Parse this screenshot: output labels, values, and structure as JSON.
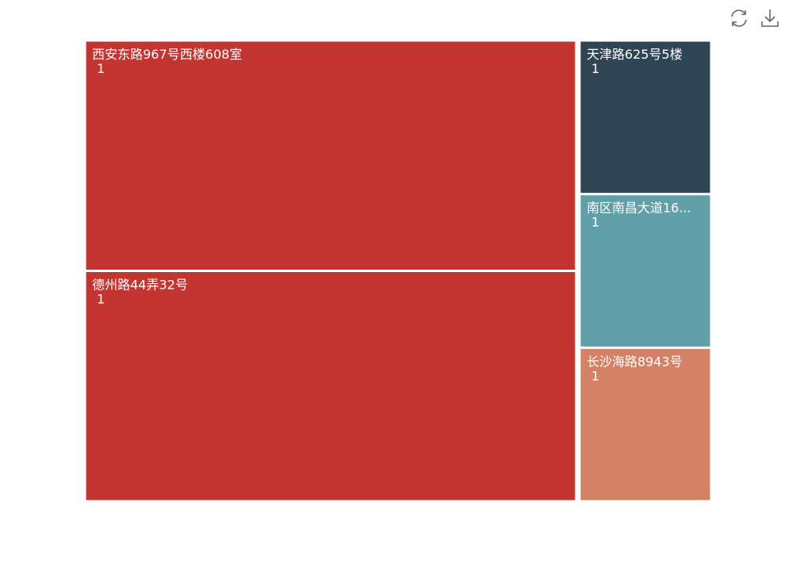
{
  "toolbox": {
    "restore_icon": "refresh-icon",
    "save_icon": "download-icon"
  },
  "chart_data": {
    "type": "treemap",
    "items": [
      {
        "name": "西安东路967号西楼608室",
        "label": "西安东路967号西楼608室",
        "value": 1,
        "color": "#c23531"
      },
      {
        "name": "德州路44弄32号",
        "label": "德州路44弄32号",
        "value": 1,
        "color": "#c23531"
      },
      {
        "name": "天津路625号5楼",
        "label": "天津路625号5楼",
        "value": 1,
        "color": "#2f4554"
      },
      {
        "name": "南区南昌大道16...",
        "label": "南区南昌大道16...",
        "value": 1,
        "color": "#61a0a8"
      },
      {
        "name": "长沙海路8943号",
        "label": "长沙海路8943号",
        "value": 1,
        "color": "#d48265"
      }
    ]
  }
}
